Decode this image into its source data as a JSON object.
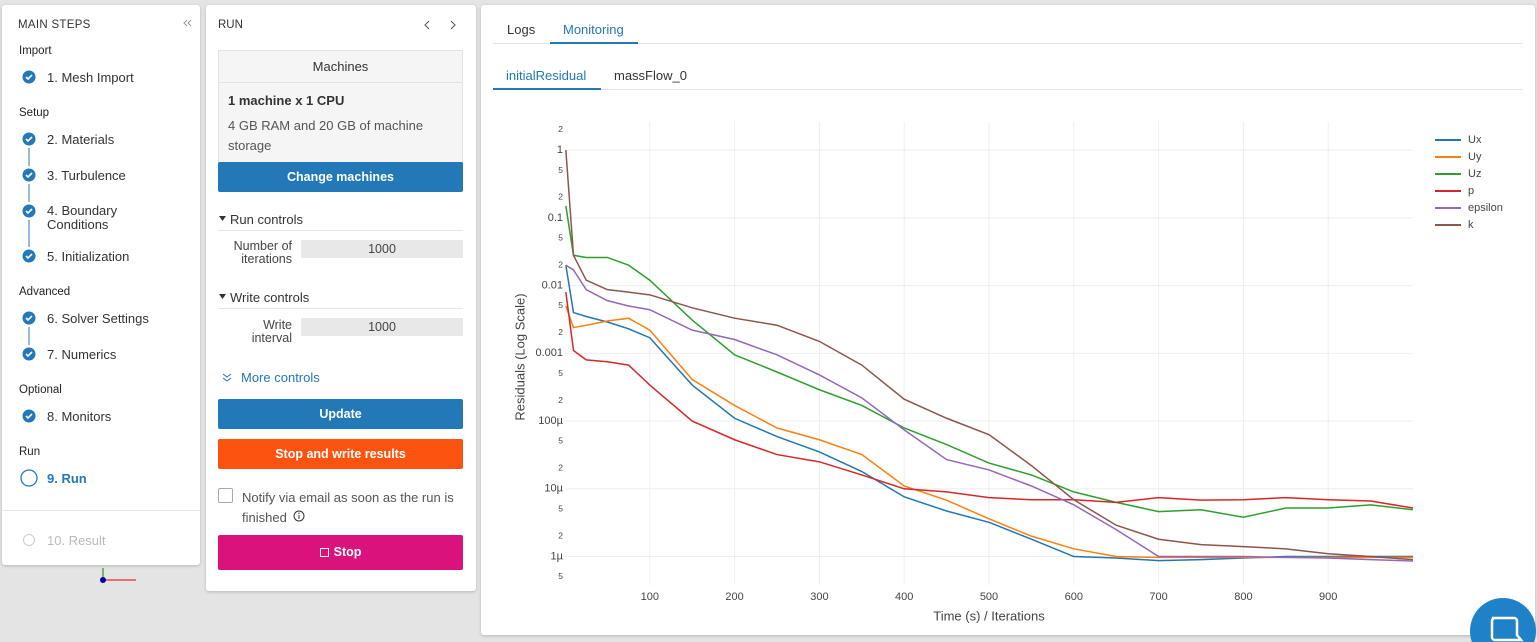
{
  "sidebar": {
    "title": "MAIN STEPS",
    "groups": [
      {
        "label": "Import",
        "steps": [
          "1. Mesh Import"
        ]
      },
      {
        "label": "Setup",
        "steps": [
          "2. Materials",
          "3. Turbulence",
          "4. Boundary Conditions",
          "5. Initialization"
        ]
      },
      {
        "label": "Advanced",
        "steps": [
          "6. Solver Settings",
          "7. Numerics"
        ]
      },
      {
        "label": "Optional",
        "steps": [
          "8. Monitors"
        ]
      },
      {
        "label": "Run",
        "steps": [
          "9. Run"
        ]
      }
    ],
    "result": "10. Result"
  },
  "run_panel": {
    "title": "RUN",
    "machines": {
      "header": "Machines",
      "name": "1 machine x 1 CPU",
      "description": "4 GB RAM and 20 GB of machine storage",
      "button": "Change machines"
    },
    "run_controls": {
      "title": "Run controls",
      "label": "Number of iterations",
      "value": 1000
    },
    "write_controls": {
      "title": "Write controls",
      "label": "Write interval",
      "value": 1000
    },
    "more_controls": "More controls",
    "update": "Update",
    "stop_write": "Stop and write results",
    "notify": "Notify via email as soon as the run is finished",
    "stop": "Stop"
  },
  "tabs": [
    "Logs",
    "Monitoring"
  ],
  "subtabs": [
    "initialResidual",
    "massFlow_0"
  ],
  "chart_data": {
    "type": "line",
    "x_label": "Time (s) / Iterations",
    "y_label": "Residuals (Log Scale)",
    "log_y": true,
    "grid": true,
    "xlim": [
      0,
      1000
    ],
    "xticks": [
      100,
      200,
      300,
      400,
      500,
      600,
      700,
      800,
      900
    ],
    "ylim": [
      3.8e-07,
      2.6
    ],
    "yticks": [
      {
        "value": 2,
        "label": "2"
      },
      1,
      {
        "value": 0.5,
        "label": "5"
      },
      {
        "value": 0.2,
        "label": "2"
      },
      0.1,
      {
        "value": 0.05,
        "label": "5"
      },
      {
        "value": 0.02,
        "label": "2"
      },
      0.01,
      {
        "value": 0.005,
        "label": "5"
      },
      {
        "value": 0.002,
        "label": "2"
      },
      0.001,
      {
        "value": 0.0005,
        "label": "5"
      },
      {
        "value": 0.0002,
        "label": "2"
      },
      {
        "value": 0.0001,
        "label": "100µ"
      },
      {
        "value": 5e-05,
        "label": "5"
      },
      {
        "value": 2e-05,
        "label": "2"
      },
      {
        "value": 1e-05,
        "label": "10µ"
      },
      {
        "value": 5e-06,
        "label": "5"
      },
      {
        "value": 2e-06,
        "label": "2"
      },
      {
        "value": 1e-06,
        "label": "1µ"
      },
      {
        "value": 5e-07,
        "label": "5"
      }
    ],
    "x": [
      1,
      10,
      25,
      50,
      75,
      100,
      150,
      200,
      250,
      300,
      350,
      400,
      450,
      500,
      550,
      600,
      650,
      700,
      750,
      800,
      850,
      900,
      950,
      1000
    ],
    "series": [
      {
        "name": "Ux",
        "color": "#1f77b4",
        "values": [
          0.02,
          0.004,
          0.0035,
          0.0029,
          0.0023,
          0.0017,
          0.00034,
          0.00011,
          5.9e-05,
          3.5e-05,
          1.8e-05,
          7.6e-06,
          4.7e-06,
          3.2e-06,
          1.8e-06,
          1e-06,
          9.5e-07,
          8.7e-07,
          9e-07,
          9.5e-07,
          1e-06,
          1e-06,
          1e-06,
          1e-06
        ]
      },
      {
        "name": "Uy",
        "color": "#ff7f0e",
        "values": [
          0.005,
          0.0024,
          0.0026,
          0.003,
          0.0033,
          0.0022,
          0.00041,
          0.00017,
          7.9e-05,
          5.3e-05,
          3.2e-05,
          1.1e-05,
          6.8e-06,
          3.6e-06,
          2e-06,
          1.3e-06,
          1e-06,
          9.7e-07,
          9.7e-07,
          9.7e-07,
          9.7e-07,
          9.7e-07,
          9.7e-07,
          9.7e-07
        ]
      },
      {
        "name": "Uz",
        "color": "#2ca02c",
        "values": [
          0.15,
          0.028,
          0.026,
          0.026,
          0.02,
          0.012,
          0.0031,
          0.00095,
          0.00053,
          0.00029,
          0.00017,
          7.9e-05,
          4.5e-05,
          2.4e-05,
          1.6e-05,
          9e-06,
          6.3e-06,
          4.6e-06,
          4.9e-06,
          3.8e-06,
          5.2e-06,
          5.2e-06,
          5.8e-06,
          4.9e-06
        ]
      },
      {
        "name": "p",
        "color": "#d62728",
        "values": [
          0.008,
          0.0011,
          0.0008,
          0.00075,
          0.00067,
          0.00034,
          0.0001,
          5.3e-05,
          3.2e-05,
          2.5e-05,
          1.6e-05,
          1e-05,
          9e-06,
          7.4e-06,
          6.9e-06,
          6.9e-06,
          6.3e-06,
          7.4e-06,
          6.8e-06,
          6.9e-06,
          7.4e-06,
          6.9e-06,
          6.6e-06,
          5.2e-06
        ]
      },
      {
        "name": "epsilon",
        "color": "#9467bd",
        "values": [
          0.02,
          0.017,
          0.0087,
          0.006,
          0.005,
          0.0044,
          0.0022,
          0.0016,
          0.00095,
          0.00048,
          0.00022,
          7.4e-05,
          2.7e-05,
          1.9e-05,
          1.1e-05,
          5.8e-06,
          2.5e-06,
          1e-06,
          1e-06,
          1e-06,
          9.7e-07,
          9.5e-07,
          9e-07,
          8.6e-07
        ]
      },
      {
        "name": "k",
        "color": "#8c564b",
        "values": [
          1,
          0.028,
          0.012,
          0.0087,
          0.008,
          0.0073,
          0.0047,
          0.0033,
          0.0026,
          0.0015,
          0.00067,
          0.00021,
          0.00011,
          6.3e-05,
          2.2e-05,
          6.9e-06,
          2.9e-06,
          1.8e-06,
          1.5e-06,
          1.4e-06,
          1.3e-06,
          1.1e-06,
          1e-06,
          9e-07
        ]
      }
    ]
  }
}
